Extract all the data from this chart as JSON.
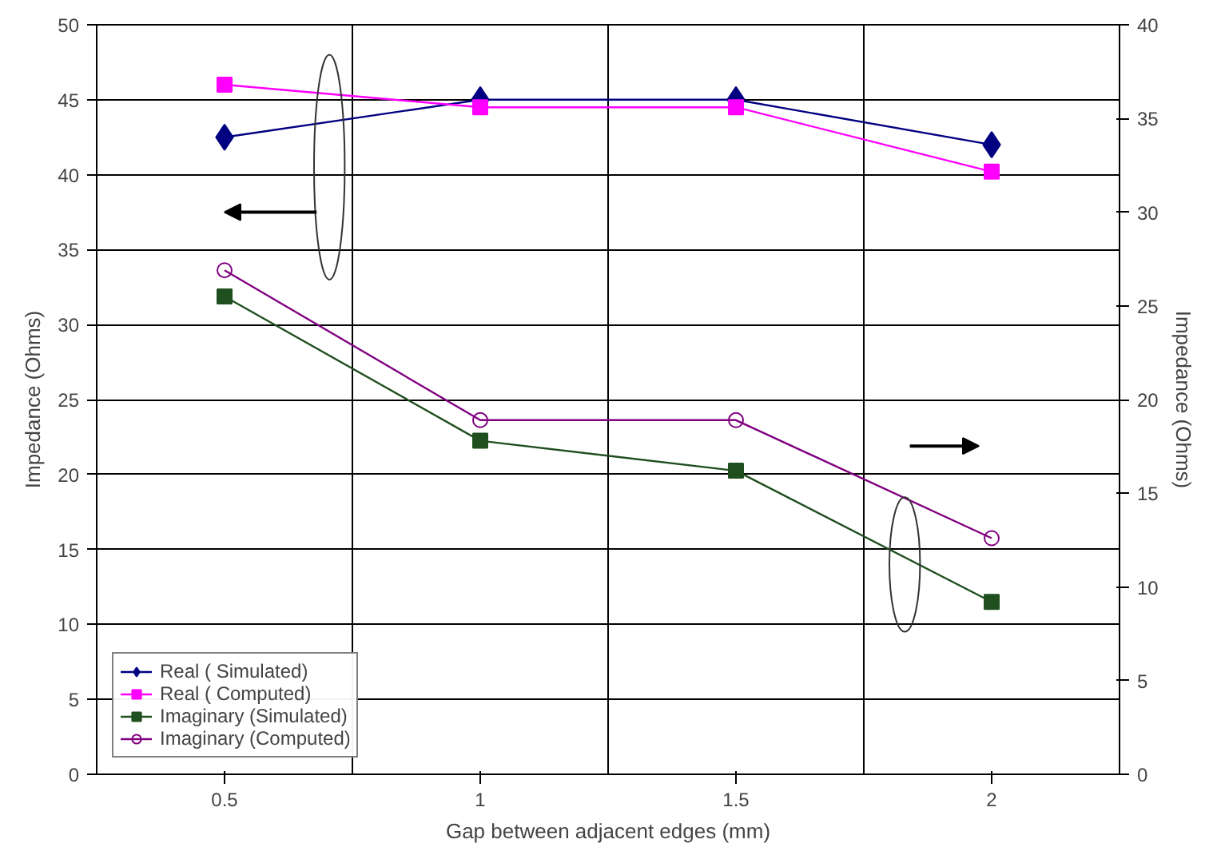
{
  "chart_data": {
    "type": "line",
    "categories": [
      "0.5",
      "1",
      "1.5",
      "2"
    ],
    "xlabel": "Gap between adjacent edges (mm)",
    "ylabel": "Impedance (Ohms)",
    "y2label": "Impedance (Ohms)",
    "ylim": [
      0,
      50
    ],
    "yticks": [
      0,
      5,
      10,
      15,
      20,
      25,
      30,
      35,
      40,
      45,
      50
    ],
    "y2lim": [
      0,
      40
    ],
    "y2ticks": [
      0,
      5,
      10,
      15,
      20,
      25,
      30,
      35,
      40
    ],
    "grid": true,
    "legend": "bottom left",
    "series": [
      {
        "name": "Real ( Simulated)",
        "color": "#000080",
        "marker": "diamond",
        "values": [
          42.5,
          45,
          45,
          42
        ]
      },
      {
        "name": "Real ( Computed)",
        "color": "#ff00ff",
        "marker": "square",
        "values": [
          46,
          44.5,
          44.5,
          40.2
        ]
      },
      {
        "name": "Imaginary (Simulated)",
        "color": "#1f4f1f",
        "marker": "square",
        "axis": "y2",
        "values": [
          25.5,
          17.8,
          16.2,
          9.2
        ]
      },
      {
        "name": "Imaginary (Computed)",
        "color": "#800080",
        "marker": "circle",
        "axis": "y2",
        "values": [
          26.9,
          18.9,
          18.9,
          12.6
        ]
      }
    ]
  }
}
